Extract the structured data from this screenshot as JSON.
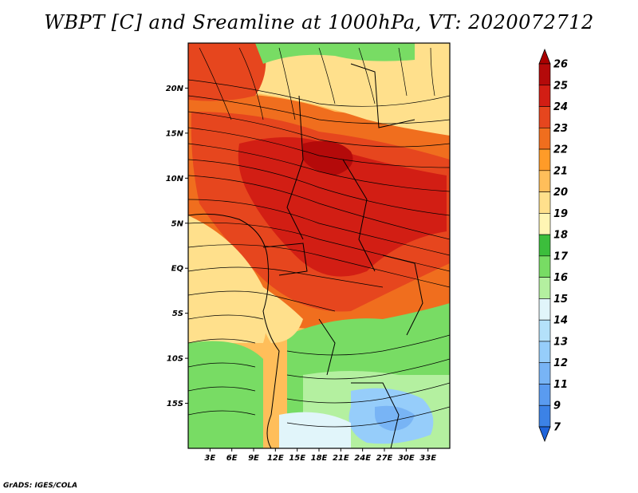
{
  "title": "WBPT [C] and Sreamline at 1000hPa, VT: 2020072712",
  "credit": "GrADS: IGES/COLA",
  "map": {
    "lon_range": [
      0,
      36
    ],
    "lat_range": [
      -20,
      25
    ],
    "lat_ticks": [
      "20N",
      "15N",
      "10N",
      "5N",
      "EQ",
      "5S",
      "10S",
      "15S"
    ],
    "lat_values": [
      20,
      15,
      10,
      5,
      0,
      -5,
      -10,
      -15
    ],
    "lon_ticks": [
      "3E",
      "6E",
      "9E",
      "12E",
      "15E",
      "18E",
      "21E",
      "24E",
      "27E",
      "30E",
      "33E"
    ],
    "lon_values": [
      3,
      6,
      9,
      12,
      15,
      18,
      21,
      24,
      27,
      30,
      33
    ]
  },
  "colorbar": {
    "labels": [
      "7",
      "9",
      "11",
      "12",
      "13",
      "14",
      "15",
      "16",
      "17",
      "18",
      "19",
      "20",
      "21",
      "22",
      "23",
      "24",
      "25",
      "26"
    ],
    "colors": [
      "#1e64dc",
      "#3c82e6",
      "#5a9bf0",
      "#78b4f5",
      "#96cdfa",
      "#b4e1fa",
      "#e1f5fa",
      "#b4f0a0",
      "#78dc64",
      "#3cbe3c",
      "#fff5b4",
      "#ffe08c",
      "#ffbe5a",
      "#ff9b28",
      "#f06e1e",
      "#e6461e",
      "#d21e14",
      "#b40a0a",
      "#aa0000"
    ]
  }
}
